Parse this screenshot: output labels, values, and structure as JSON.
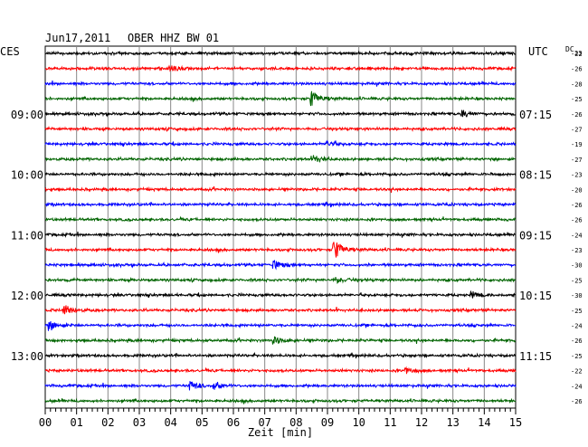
{
  "header": {
    "date": "Jun17,2011",
    "station": "OBER HHZ BW 01"
  },
  "left_timezone": "CES",
  "right_timezone": "UTC",
  "dc_header": "DC",
  "dc_header_sub": "23",
  "colors": {
    "trace_cycle": [
      "#000000",
      "#ff0000",
      "#0000ff",
      "#006400"
    ],
    "grid": "#888888"
  },
  "chart_data": {
    "type": "line",
    "title": "Jun17,2011  OBER HHZ BW 01",
    "xlabel": "Zeit [min]",
    "x_ticks": [
      "00",
      "01",
      "02",
      "03",
      "04",
      "05",
      "06",
      "07",
      "08",
      "09",
      "10",
      "11",
      "12",
      "13",
      "14",
      "15"
    ],
    "xlim": [
      0,
      15
    ],
    "grid": true,
    "left_time_labels": [
      {
        "row": 4,
        "label": "09:00"
      },
      {
        "row": 8,
        "label": "10:00"
      },
      {
        "row": 12,
        "label": "11:00"
      },
      {
        "row": 16,
        "label": "12:00"
      },
      {
        "row": 20,
        "label": "13:00"
      }
    ],
    "right_time_labels": [
      {
        "row": 4,
        "label": "07:15"
      },
      {
        "row": 8,
        "label": "08:15"
      },
      {
        "row": 12,
        "label": "09:15"
      },
      {
        "row": 16,
        "label": "10:15"
      },
      {
        "row": 20,
        "label": "11:15"
      }
    ],
    "dc_offsets": [
      "-22",
      "-26",
      "-28",
      "-25",
      "-26",
      "-27",
      "-19",
      "-27",
      "-23",
      "-20",
      "-26",
      "-26",
      "-24",
      "-23",
      "-30",
      "-25",
      "-30",
      "-25",
      "-24",
      "-26",
      "-25",
      "-22",
      "-24",
      "-26"
    ],
    "traces": [
      {
        "events": []
      },
      {
        "events": [
          {
            "minute": 4.0,
            "amplitude": 3
          }
        ]
      },
      {
        "events": []
      },
      {
        "events": [
          {
            "minute": 8.5,
            "amplitude": 8
          }
        ]
      },
      {
        "events": [
          {
            "minute": 13.3,
            "amplitude": 4
          }
        ]
      },
      {
        "events": []
      },
      {
        "events": [
          {
            "minute": 9.0,
            "amplitude": 3
          }
        ]
      },
      {
        "events": [
          {
            "minute": 8.6,
            "amplitude": 4
          }
        ]
      },
      {
        "events": []
      },
      {
        "events": []
      },
      {
        "events": []
      },
      {
        "events": []
      },
      {
        "events": []
      },
      {
        "events": [
          {
            "minute": 9.2,
            "amplitude": 12
          }
        ]
      },
      {
        "events": [
          {
            "minute": 7.3,
            "amplitude": 5
          }
        ]
      },
      {
        "events": [
          {
            "minute": 9.3,
            "amplitude": 3
          }
        ]
      },
      {
        "events": [
          {
            "minute": 13.6,
            "amplitude": 3
          }
        ]
      },
      {
        "events": [
          {
            "minute": 0.6,
            "amplitude": 6
          }
        ]
      },
      {
        "events": [
          {
            "minute": 0.15,
            "amplitude": 5
          }
        ]
      },
      {
        "events": [
          {
            "minute": 7.3,
            "amplitude": 4
          }
        ]
      },
      {
        "events": []
      },
      {
        "events": [
          {
            "minute": 11.5,
            "amplitude": 3
          }
        ]
      },
      {
        "events": [
          {
            "minute": 4.6,
            "amplitude": 6
          },
          {
            "minute": 5.4,
            "amplitude": 4
          }
        ]
      },
      {
        "events": []
      }
    ]
  }
}
